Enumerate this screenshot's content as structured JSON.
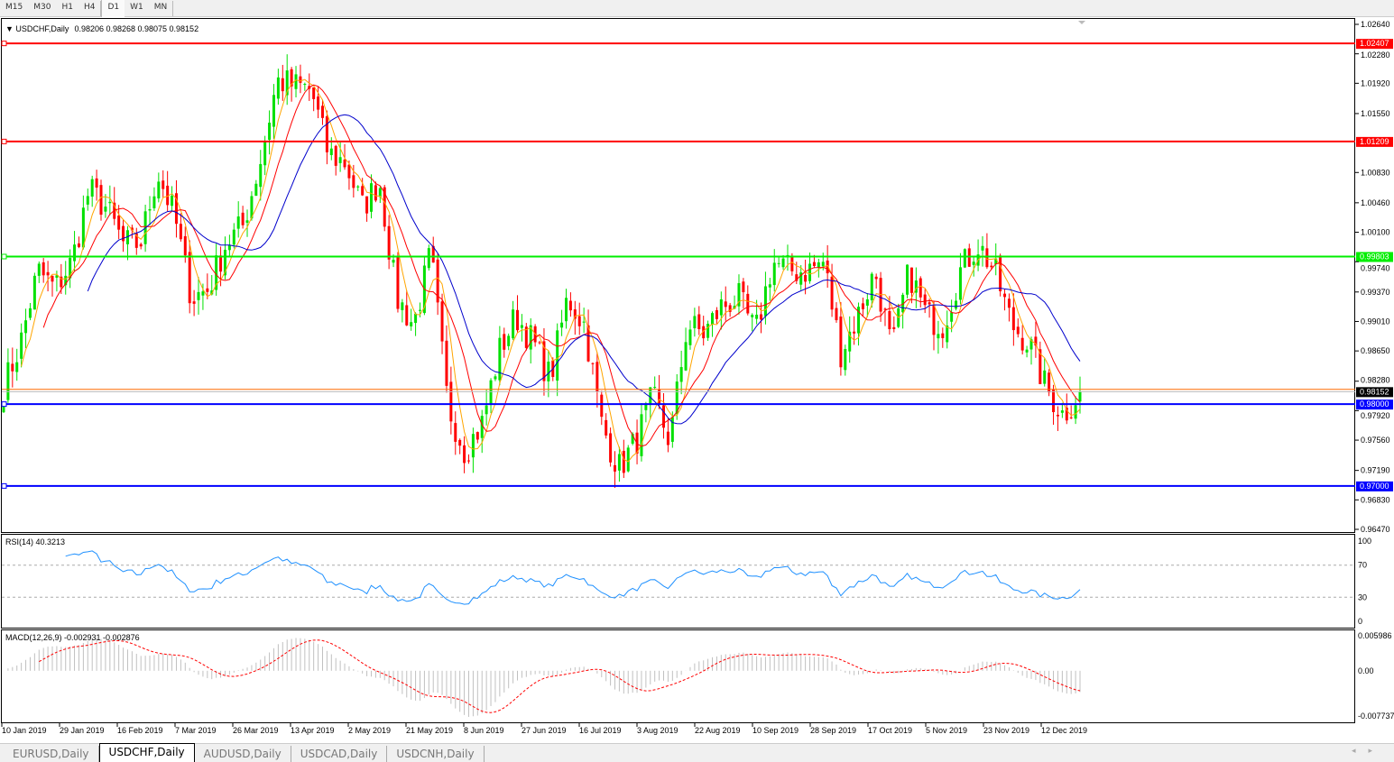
{
  "timeframes": [
    "M15",
    "M30",
    "H1",
    "H4",
    "D1",
    "W1",
    "MN"
  ],
  "active_timeframe": "D1",
  "chart": {
    "symbol_label": "USDCHF,Daily",
    "ohlc": "0.98206 0.98268 0.98075 0.98152",
    "price_axis": [
      "1.02640",
      "1.02280",
      "1.01920",
      "1.01550",
      "1.00830",
      "1.00460",
      "1.00100",
      "0.99740",
      "0.99370",
      "0.99010",
      "0.98650",
      "0.98280",
      "0.97920",
      "0.97560",
      "0.97190",
      "0.96830",
      "0.96470"
    ],
    "price_range": [
      0.9647,
      1.0264
    ],
    "levels": [
      {
        "label": "1.02407",
        "value": 1.02407,
        "color": "#ff0000"
      },
      {
        "label": "1.01209",
        "value": 1.01209,
        "color": "#ff0000"
      },
      {
        "label": "0.99803",
        "value": 0.99803,
        "color": "#00ee00"
      },
      {
        "label": "0.98000",
        "value": 0.98,
        "color": "#0000ff"
      },
      {
        "label": "0.97000",
        "value": 0.97,
        "color": "#0000ff"
      }
    ],
    "bid_line": {
      "value": 0.98181,
      "color": "#ff6a00"
    },
    "current_price": {
      "label": "0.98152",
      "value": 0.98152
    },
    "colors": {
      "bull": "#00e000",
      "bear": "#ff0000",
      "ma_fast": "#ffa500",
      "ma_mid": "#ff0000",
      "ma_slow": "#0000cc"
    },
    "dates": [
      "10 Jan 2019",
      "29 Jan 2019",
      "16 Feb 2019",
      "7 Mar 2019",
      "26 Mar 2019",
      "13 Apr 2019",
      "2 May 2019",
      "21 May 2019",
      "8 Jun 2019",
      "27 Jun 2019",
      "16 Jul 2019",
      "3 Aug 2019",
      "22 Aug 2019",
      "10 Sep 2019",
      "28 Sep 2019",
      "17 Oct 2019",
      "5 Nov 2019",
      "23 Nov 2019",
      "12 Dec 2019"
    ]
  },
  "chart_data": {
    "type": "candlestick",
    "approx_closes": [
      0.982,
      0.9875,
      0.9963,
      0.9941,
      0.9974,
      1.0062,
      1.004,
      0.9996,
      0.9996,
      1.0084,
      1.0029,
      0.993,
      0.9941,
      0.9996,
      1.0018,
      1.0095,
      1.0195,
      1.0189,
      1.0184,
      1.0106,
      1.0095,
      1.004,
      1.0073,
      0.993,
      0.9897,
      0.9985,
      0.9798,
      0.9743,
      0.9776,
      0.9864,
      0.9908,
      0.9875,
      0.9831,
      0.993,
      0.9897,
      0.9776,
      0.9721,
      0.9754,
      0.9809,
      0.9754,
      0.9897,
      0.9886,
      0.9919,
      0.993,
      0.9886,
      0.9974,
      0.9963,
      0.9963,
      0.9974,
      0.9864,
      0.9908,
      0.9963,
      0.9864,
      0.9963,
      0.9908,
      0.9897,
      0.9963,
      0.9996,
      0.9963,
      0.9897,
      0.9875,
      0.982,
      0.9787,
      0.9815
    ]
  },
  "rsi": {
    "label": "RSI(14) 40.3213",
    "axis": [
      "100",
      "70",
      "30",
      "0"
    ],
    "levels": [
      70,
      30
    ],
    "color": "#1e90ff"
  },
  "macd": {
    "label": "MACD(12,26,9) -0.002931 -0.002876",
    "axis": [
      "0.005986",
      "0.00",
      "-0.007737"
    ],
    "range": [
      -0.007737,
      0.005986
    ],
    "signal_color": "#ff0000",
    "hist_color": "#c0c0c0"
  },
  "tabs": [
    "EURUSD,Daily",
    "USDCHF,Daily",
    "AUDUSD,Daily",
    "USDCAD,Daily",
    "USDCNH,Daily"
  ],
  "active_tab": "USDCHF,Daily"
}
